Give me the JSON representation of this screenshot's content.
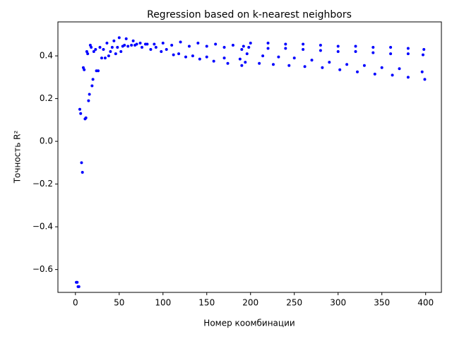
{
  "chart_data": {
    "type": "scatter",
    "title": "Regression based on k-nearest neighbors",
    "x_label": "Номер коомбинации",
    "y_label": "Точность R²",
    "color": "#0000ff",
    "xlim": [
      -20,
      418
    ],
    "ylim": [
      -0.707,
      0.559
    ],
    "xticks": [
      0,
      50,
      100,
      150,
      200,
      250,
      300,
      350,
      400
    ],
    "yticks": [
      {
        "value": -0.6,
        "label": "−0.6"
      },
      {
        "value": -0.4,
        "label": "−0.4"
      },
      {
        "value": -0.2,
        "label": "−0.2"
      },
      {
        "value": 0,
        "label": "0.0"
      },
      0.2,
      0.4
    ],
    "x": [
      1,
      2,
      3,
      4,
      5,
      6,
      7,
      8,
      9,
      10,
      11,
      12,
      13,
      14,
      15,
      16,
      17,
      18,
      19,
      20,
      21,
      23,
      24,
      26,
      28,
      36,
      44,
      50,
      58,
      66,
      74,
      82,
      100,
      120,
      140,
      160,
      180,
      192,
      200,
      220,
      240,
      260,
      280,
      300,
      320,
      340,
      360,
      380,
      398,
      30,
      40,
      48,
      56,
      70,
      90,
      110,
      130,
      150,
      170,
      190,
      198,
      220,
      240,
      260,
      280,
      300,
      320,
      340,
      360,
      380,
      397,
      32,
      42,
      54,
      64,
      80,
      92,
      104,
      118,
      134,
      150,
      170,
      188,
      196,
      214,
      232,
      250,
      270,
      290,
      310,
      330,
      350,
      370,
      396,
      34,
      38,
      46,
      52,
      60,
      68,
      76,
      86,
      98,
      112,
      126,
      142,
      158,
      174,
      190,
      194,
      210,
      226,
      244,
      262,
      282,
      302,
      322,
      342,
      362,
      380,
      399
    ],
    "values": [
      -0.66,
      -0.66,
      -0.68,
      -0.68,
      0.15,
      0.13,
      -0.1,
      -0.145,
      0.345,
      0.335,
      0.105,
      0.11,
      0.42,
      0.41,
      0.19,
      0.22,
      0.45,
      0.44,
      0.26,
      0.29,
      0.42,
      0.43,
      0.33,
      0.33,
      0.44,
      0.46,
      0.47,
      0.485,
      0.48,
      0.47,
      0.46,
      0.455,
      0.46,
      0.465,
      0.46,
      0.455,
      0.45,
      0.445,
      0.46,
      0.46,
      0.455,
      0.455,
      0.45,
      0.445,
      0.445,
      0.44,
      0.44,
      0.435,
      0.43,
      0.39,
      0.42,
      0.44,
      0.45,
      0.455,
      0.455,
      0.45,
      0.445,
      0.445,
      0.44,
      0.43,
      0.44,
      0.435,
      0.435,
      0.43,
      0.425,
      0.42,
      0.42,
      0.415,
      0.41,
      0.41,
      0.405,
      0.43,
      0.44,
      0.445,
      0.45,
      0.455,
      0.44,
      0.43,
      0.41,
      0.4,
      0.395,
      0.39,
      0.385,
      0.41,
      0.4,
      0.395,
      0.39,
      0.38,
      0.37,
      0.36,
      0.355,
      0.345,
      0.34,
      0.325,
      0.39,
      0.4,
      0.41,
      0.42,
      0.445,
      0.45,
      0.44,
      0.43,
      0.42,
      0.405,
      0.395,
      0.385,
      0.375,
      0.365,
      0.355,
      0.37,
      0.365,
      0.36,
      0.355,
      0.35,
      0.345,
      0.335,
      0.325,
      0.315,
      0.31,
      0.3,
      0.29
    ]
  }
}
